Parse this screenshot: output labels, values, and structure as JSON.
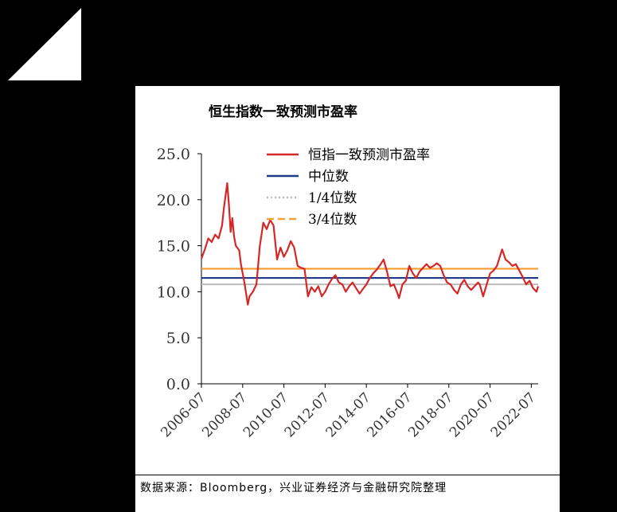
{
  "chart_data": {
    "type": "line",
    "title": "恒生指数一致预测市盈率",
    "ylim": [
      0,
      25
    ],
    "yticks": [
      "0.0",
      "5.0",
      "10.0",
      "15.0",
      "20.0",
      "25.0"
    ],
    "xticks": [
      "2006-07",
      "2008-07",
      "2010-07",
      "2012-07",
      "2014-07",
      "2016-07",
      "2018-07",
      "2020-07",
      "2022-07"
    ],
    "xrange": [
      "2006-07",
      "2022-11"
    ],
    "legend_position": "top-center",
    "colors": {
      "pe": "#d62728",
      "median": "#1f3a8a",
      "q1": "#bbbbbb",
      "q3": "#f5a13a"
    },
    "series": [
      {
        "name": "恒指一致预测市盈率",
        "style": "solid",
        "points": [
          [
            "2006-07",
            13.6
          ],
          [
            "2006-09",
            14.6
          ],
          [
            "2006-11",
            15.8
          ],
          [
            "2007-01",
            15.4
          ],
          [
            "2007-03",
            16.2
          ],
          [
            "2007-05",
            15.8
          ],
          [
            "2007-07",
            17.2
          ],
          [
            "2007-08",
            19.0
          ],
          [
            "2007-10",
            21.8
          ],
          [
            "2007-11",
            19.5
          ],
          [
            "2007-12",
            16.5
          ],
          [
            "2008-01",
            18.0
          ],
          [
            "2008-02",
            16.0
          ],
          [
            "2008-03",
            15.0
          ],
          [
            "2008-05",
            14.5
          ],
          [
            "2008-06",
            13.0
          ],
          [
            "2008-08",
            11.0
          ],
          [
            "2008-10",
            8.6
          ],
          [
            "2008-11",
            9.5
          ],
          [
            "2009-01",
            10.0
          ],
          [
            "2009-03",
            10.8
          ],
          [
            "2009-05",
            15.0
          ],
          [
            "2009-07",
            17.5
          ],
          [
            "2009-09",
            16.8
          ],
          [
            "2009-11",
            17.8
          ],
          [
            "2010-01",
            17.2
          ],
          [
            "2010-03",
            13.5
          ],
          [
            "2010-05",
            14.8
          ],
          [
            "2010-07",
            13.8
          ],
          [
            "2010-09",
            14.5
          ],
          [
            "2010-11",
            15.5
          ],
          [
            "2011-01",
            14.8
          ],
          [
            "2011-03",
            12.8
          ],
          [
            "2011-05",
            12.6
          ],
          [
            "2011-07",
            12.5
          ],
          [
            "2011-09",
            9.5
          ],
          [
            "2011-11",
            10.5
          ],
          [
            "2012-01",
            10.0
          ],
          [
            "2012-03",
            10.6
          ],
          [
            "2012-05",
            9.5
          ],
          [
            "2012-07",
            10.0
          ],
          [
            "2012-09",
            10.8
          ],
          [
            "2012-11",
            11.4
          ],
          [
            "2013-01",
            11.8
          ],
          [
            "2013-03",
            11.0
          ],
          [
            "2013-05",
            10.8
          ],
          [
            "2013-07",
            10.0
          ],
          [
            "2013-09",
            10.6
          ],
          [
            "2013-11",
            11.0
          ],
          [
            "2014-01",
            10.4
          ],
          [
            "2014-03",
            9.8
          ],
          [
            "2014-05",
            10.3
          ],
          [
            "2014-07",
            10.8
          ],
          [
            "2014-09",
            11.5
          ],
          [
            "2014-11",
            12.0
          ],
          [
            "2015-01",
            12.4
          ],
          [
            "2015-03",
            12.9
          ],
          [
            "2015-05",
            13.5
          ],
          [
            "2015-07",
            12.2
          ],
          [
            "2015-09",
            10.6
          ],
          [
            "2015-11",
            10.8
          ],
          [
            "2016-01",
            9.9
          ],
          [
            "2016-02",
            9.3
          ],
          [
            "2016-04",
            10.8
          ],
          [
            "2016-06",
            11.2
          ],
          [
            "2016-08",
            12.8
          ],
          [
            "2016-10",
            12.0
          ],
          [
            "2016-12",
            11.5
          ],
          [
            "2017-02",
            12.2
          ],
          [
            "2017-04",
            12.6
          ],
          [
            "2017-06",
            13.0
          ],
          [
            "2017-08",
            12.6
          ],
          [
            "2017-10",
            12.8
          ],
          [
            "2017-12",
            13.1
          ],
          [
            "2018-02",
            12.8
          ],
          [
            "2018-04",
            11.8
          ],
          [
            "2018-06",
            11.0
          ],
          [
            "2018-08",
            10.8
          ],
          [
            "2018-10",
            10.2
          ],
          [
            "2018-12",
            9.8
          ],
          [
            "2019-02",
            10.8
          ],
          [
            "2019-04",
            11.3
          ],
          [
            "2019-06",
            10.6
          ],
          [
            "2019-08",
            10.2
          ],
          [
            "2019-10",
            10.6
          ],
          [
            "2019-12",
            11.0
          ],
          [
            "2020-01",
            10.8
          ],
          [
            "2020-03",
            9.5
          ],
          [
            "2020-05",
            10.8
          ],
          [
            "2020-07",
            12.0
          ],
          [
            "2020-09",
            12.3
          ],
          [
            "2020-11",
            12.8
          ],
          [
            "2021-01",
            14.0
          ],
          [
            "2021-02",
            14.6
          ],
          [
            "2021-04",
            13.5
          ],
          [
            "2021-06",
            13.2
          ],
          [
            "2021-08",
            12.8
          ],
          [
            "2021-10",
            13.0
          ],
          [
            "2021-12",
            12.3
          ],
          [
            "2022-02",
            11.6
          ],
          [
            "2022-04",
            10.8
          ],
          [
            "2022-06",
            11.2
          ],
          [
            "2022-08",
            10.4
          ],
          [
            "2022-10",
            10.0
          ],
          [
            "2022-11",
            10.6
          ]
        ]
      },
      {
        "name": "中位数",
        "style": "solid",
        "value": 11.5
      },
      {
        "name": "1/4位数",
        "style": "dotted",
        "value": 10.8
      },
      {
        "name": "3/4位数",
        "style": "dashed",
        "value": 12.5
      }
    ]
  },
  "source": "数据来源：Bloomberg，兴业证券经济与金融研究院整理"
}
